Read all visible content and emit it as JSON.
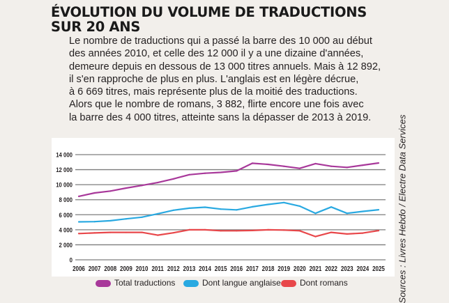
{
  "title_lines": [
    "ÉVOLUTION DU VOLUME DE TRADUCTIONS",
    "SUR 20 ANS"
  ],
  "intro_lines": [
    "Le nombre de traductions qui a passé la barre des 10 000 au début",
    "des années 2010, et celle des 12 000 il y a une dizaine d'années,",
    "demeure depuis en dessous de 13 000 titres annuels. Mais à 12 892,",
    "il s'en rapproche de plus en plus. L'anglais est en légère décrue,",
    "à 6 669 titres, mais représente plus de la moitié des traductions.",
    "Alors que le nombre de romans, 3 882, flirte encore une fois avec",
    "la barre des 4 000 titres, atteinte sans la dépasser de 2013 à 2019."
  ],
  "source": "Sources : Livres Hebdo / Electre Data Services",
  "chart_data": {
    "type": "line",
    "title": "ÉVOLUTION DU VOLUME DE TRADUCTIONS SUR 20 ANS",
    "xlabel": "",
    "ylabel": "",
    "x": [
      "2006",
      "2007",
      "2008",
      "2009",
      "2010",
      "2011",
      "2012",
      "2013",
      "2014",
      "2015",
      "2016",
      "2017",
      "2018",
      "2019",
      "2020",
      "2021",
      "2022",
      "2023",
      "2024",
      "2025"
    ],
    "ylim": [
      0,
      14000
    ],
    "yticks": [
      0,
      2000,
      4000,
      6000,
      8000,
      10000,
      12000,
      14000
    ],
    "ytick_labels": [
      "0",
      "2 000",
      "4 000",
      "6 000",
      "8 000",
      "10 000",
      "12 000",
      "14 000"
    ],
    "grid": "horizontal",
    "legend_position": "bottom",
    "series": [
      {
        "name": "Total traductions",
        "color": "#a8389a",
        "values": [
          8450,
          8900,
          9150,
          9550,
          9900,
          10280,
          10770,
          11330,
          11520,
          11640,
          11830,
          12850,
          12700,
          12450,
          12170,
          12800,
          12450,
          12300,
          12600,
          12892
        ]
      },
      {
        "name": "Dont langue anglaise",
        "color": "#29a9e1",
        "values": [
          5050,
          5080,
          5200,
          5450,
          5670,
          6130,
          6600,
          6870,
          7000,
          6750,
          6650,
          7060,
          7370,
          7620,
          7150,
          6190,
          7030,
          6190,
          6440,
          6669
        ]
      },
      {
        "name": "Dont romans",
        "color": "#e8474a",
        "values": [
          3500,
          3580,
          3650,
          3650,
          3650,
          3280,
          3600,
          4000,
          4000,
          3870,
          3870,
          3900,
          4000,
          3960,
          3870,
          3100,
          3650,
          3440,
          3560,
          3882
        ]
      }
    ]
  }
}
